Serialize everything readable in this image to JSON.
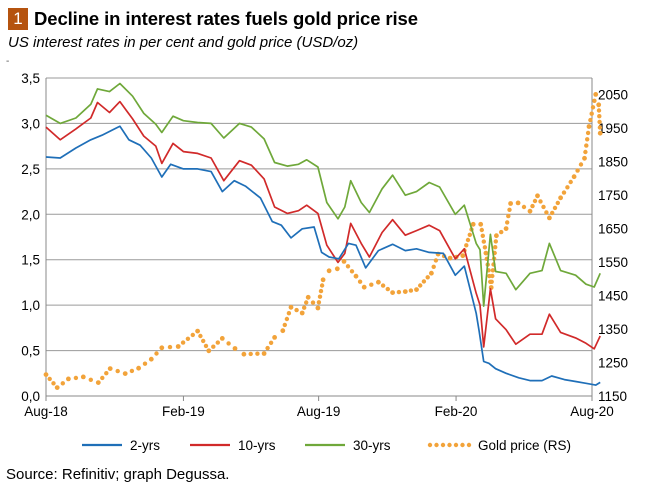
{
  "header": {
    "badge": "1",
    "title": "Decline in interest rates fuels gold price rise",
    "subtitle": "US interest rates in per cent and gold price (USD/oz)",
    "dash": "-"
  },
  "footer": {
    "source": "Source: Refinitiv; graph Degussa."
  },
  "colors": {
    "two_yr": "#1f6fb8",
    "ten_yr": "#d12a2a",
    "thirty_yr": "#6fa83a",
    "gold": "#f2a33a",
    "grid": "#9a9a9a",
    "badge": "#b5530f"
  },
  "chart_data": {
    "type": "line",
    "x_tick_labels": [
      "Aug-18",
      "Feb-19",
      "Aug-19",
      "Feb-20",
      "Aug-20"
    ],
    "x_ticks": [
      "2018-08-01",
      "2019-02-01",
      "2019-08-01",
      "2020-02-01",
      "2020-08-01"
    ],
    "y_left": {
      "range": [
        0,
        3.5
      ],
      "ticks": [
        0,
        0.5,
        1.0,
        1.5,
        2.0,
        2.5,
        3.0,
        3.5
      ],
      "tick_labels": [
        "0,0",
        "0,5",
        "1,0",
        "1,5",
        "2,0",
        "2,5",
        "3,0",
        "3,5"
      ]
    },
    "y_right": {
      "range": [
        1150,
        2100
      ],
      "ticks": [
        1150,
        1250,
        1350,
        1450,
        1550,
        1650,
        1750,
        1850,
        1950,
        2050
      ],
      "tick_labels": [
        "1150",
        "1250",
        "1350",
        "1450",
        "1550",
        "1650",
        "1750",
        "1850",
        "1950",
        "2050"
      ]
    },
    "grid": "horizontal",
    "legend_position": "bottom",
    "series": [
      {
        "name": "2-yrs",
        "axis": "left",
        "style": "solid",
        "points": [
          [
            "2018-08-01",
            2.63
          ],
          [
            "2018-08-20",
            2.62
          ],
          [
            "2018-09-10",
            2.73
          ],
          [
            "2018-09-30",
            2.82
          ],
          [
            "2018-10-15",
            2.87
          ],
          [
            "2018-11-08",
            2.97
          ],
          [
            "2018-11-20",
            2.82
          ],
          [
            "2018-12-05",
            2.76
          ],
          [
            "2018-12-20",
            2.62
          ],
          [
            "2019-01-03",
            2.41
          ],
          [
            "2019-01-15",
            2.55
          ],
          [
            "2019-02-01",
            2.5
          ],
          [
            "2019-02-20",
            2.5
          ],
          [
            "2019-03-10",
            2.47
          ],
          [
            "2019-03-25",
            2.25
          ],
          [
            "2019-04-10",
            2.37
          ],
          [
            "2019-04-25",
            2.31
          ],
          [
            "2019-05-15",
            2.18
          ],
          [
            "2019-05-31",
            1.92
          ],
          [
            "2019-06-12",
            1.88
          ],
          [
            "2019-06-25",
            1.74
          ],
          [
            "2019-07-10",
            1.84
          ],
          [
            "2019-07-26",
            1.86
          ],
          [
            "2019-08-05",
            1.58
          ],
          [
            "2019-08-15",
            1.53
          ],
          [
            "2019-08-28",
            1.51
          ],
          [
            "2019-09-10",
            1.68
          ],
          [
            "2019-09-20",
            1.66
          ],
          [
            "2019-10-03",
            1.41
          ],
          [
            "2019-10-20",
            1.6
          ],
          [
            "2019-11-08",
            1.67
          ],
          [
            "2019-11-25",
            1.6
          ],
          [
            "2019-12-10",
            1.62
          ],
          [
            "2019-12-27",
            1.58
          ],
          [
            "2020-01-15",
            1.57
          ],
          [
            "2020-01-31",
            1.33
          ],
          [
            "2020-02-12",
            1.43
          ],
          [
            "2020-02-28",
            0.91
          ],
          [
            "2020-03-03",
            0.71
          ],
          [
            "2020-03-09",
            0.38
          ],
          [
            "2020-03-16",
            0.36
          ],
          [
            "2020-03-25",
            0.3
          ],
          [
            "2020-04-08",
            0.25
          ],
          [
            "2020-04-25",
            0.2
          ],
          [
            "2020-05-10",
            0.17
          ],
          [
            "2020-05-26",
            0.17
          ],
          [
            "2020-06-08",
            0.22
          ],
          [
            "2020-06-25",
            0.18
          ],
          [
            "2020-07-10",
            0.16
          ],
          [
            "2020-07-24",
            0.14
          ],
          [
            "2020-08-06",
            0.12
          ],
          [
            "2020-08-12",
            0.15
          ]
        ]
      },
      {
        "name": "10-yrs",
        "axis": "left",
        "style": "solid",
        "points": [
          [
            "2018-08-01",
            2.96
          ],
          [
            "2018-08-20",
            2.82
          ],
          [
            "2018-09-10",
            2.94
          ],
          [
            "2018-09-30",
            3.06
          ],
          [
            "2018-10-09",
            3.23
          ],
          [
            "2018-10-25",
            3.12
          ],
          [
            "2018-11-08",
            3.24
          ],
          [
            "2018-11-25",
            3.05
          ],
          [
            "2018-12-10",
            2.86
          ],
          [
            "2018-12-26",
            2.75
          ],
          [
            "2019-01-03",
            2.56
          ],
          [
            "2019-01-18",
            2.78
          ],
          [
            "2019-02-01",
            2.69
          ],
          [
            "2019-02-20",
            2.67
          ],
          [
            "2019-03-10",
            2.62
          ],
          [
            "2019-03-27",
            2.37
          ],
          [
            "2019-04-17",
            2.59
          ],
          [
            "2019-05-03",
            2.54
          ],
          [
            "2019-05-20",
            2.39
          ],
          [
            "2019-06-03",
            2.08
          ],
          [
            "2019-06-20",
            2.01
          ],
          [
            "2019-07-05",
            2.04
          ],
          [
            "2019-07-16",
            2.1
          ],
          [
            "2019-07-31",
            2.01
          ],
          [
            "2019-08-12",
            1.66
          ],
          [
            "2019-08-27",
            1.47
          ],
          [
            "2019-09-05",
            1.57
          ],
          [
            "2019-09-13",
            1.9
          ],
          [
            "2019-09-27",
            1.68
          ],
          [
            "2019-10-08",
            1.53
          ],
          [
            "2019-10-25",
            1.8
          ],
          [
            "2019-11-08",
            1.94
          ],
          [
            "2019-11-25",
            1.77
          ],
          [
            "2019-12-10",
            1.82
          ],
          [
            "2019-12-27",
            1.88
          ],
          [
            "2020-01-10",
            1.82
          ],
          [
            "2020-01-31",
            1.51
          ],
          [
            "2020-02-12",
            1.62
          ],
          [
            "2020-02-28",
            1.13
          ],
          [
            "2020-03-04",
            1.0
          ],
          [
            "2020-03-09",
            0.54
          ],
          [
            "2020-03-18",
            1.18
          ],
          [
            "2020-03-25",
            0.85
          ],
          [
            "2020-04-08",
            0.73
          ],
          [
            "2020-04-21",
            0.57
          ],
          [
            "2020-05-10",
            0.68
          ],
          [
            "2020-05-26",
            0.68
          ],
          [
            "2020-06-05",
            0.9
          ],
          [
            "2020-06-20",
            0.7
          ],
          [
            "2020-07-10",
            0.64
          ],
          [
            "2020-07-24",
            0.58
          ],
          [
            "2020-08-04",
            0.52
          ],
          [
            "2020-08-12",
            0.66
          ]
        ]
      },
      {
        "name": "30-yrs",
        "axis": "left",
        "style": "solid",
        "points": [
          [
            "2018-08-01",
            3.09
          ],
          [
            "2018-08-20",
            3.0
          ],
          [
            "2018-09-10",
            3.06
          ],
          [
            "2018-09-30",
            3.21
          ],
          [
            "2018-10-09",
            3.38
          ],
          [
            "2018-10-25",
            3.35
          ],
          [
            "2018-11-08",
            3.44
          ],
          [
            "2018-11-25",
            3.3
          ],
          [
            "2018-12-10",
            3.11
          ],
          [
            "2018-12-26",
            2.99
          ],
          [
            "2019-01-03",
            2.9
          ],
          [
            "2019-01-18",
            3.08
          ],
          [
            "2019-02-01",
            3.03
          ],
          [
            "2019-02-20",
            3.01
          ],
          [
            "2019-03-10",
            3.0
          ],
          [
            "2019-03-27",
            2.84
          ],
          [
            "2019-04-17",
            3.0
          ],
          [
            "2019-05-03",
            2.96
          ],
          [
            "2019-05-20",
            2.83
          ],
          [
            "2019-06-03",
            2.57
          ],
          [
            "2019-06-20",
            2.53
          ],
          [
            "2019-07-05",
            2.55
          ],
          [
            "2019-07-16",
            2.6
          ],
          [
            "2019-07-31",
            2.52
          ],
          [
            "2019-08-12",
            2.13
          ],
          [
            "2019-08-27",
            1.95
          ],
          [
            "2019-09-05",
            2.08
          ],
          [
            "2019-09-13",
            2.37
          ],
          [
            "2019-09-27",
            2.13
          ],
          [
            "2019-10-08",
            2.02
          ],
          [
            "2019-10-25",
            2.28
          ],
          [
            "2019-11-08",
            2.43
          ],
          [
            "2019-11-25",
            2.21
          ],
          [
            "2019-12-10",
            2.25
          ],
          [
            "2019-12-27",
            2.35
          ],
          [
            "2020-01-10",
            2.3
          ],
          [
            "2020-01-31",
            2.0
          ],
          [
            "2020-02-12",
            2.1
          ],
          [
            "2020-02-28",
            1.68
          ],
          [
            "2020-03-04",
            1.61
          ],
          [
            "2020-03-09",
            0.99
          ],
          [
            "2020-03-18",
            1.78
          ],
          [
            "2020-03-25",
            1.37
          ],
          [
            "2020-04-08",
            1.35
          ],
          [
            "2020-04-21",
            1.17
          ],
          [
            "2020-05-10",
            1.35
          ],
          [
            "2020-05-26",
            1.38
          ],
          [
            "2020-06-05",
            1.68
          ],
          [
            "2020-06-20",
            1.38
          ],
          [
            "2020-07-10",
            1.33
          ],
          [
            "2020-07-24",
            1.23
          ],
          [
            "2020-08-04",
            1.2
          ],
          [
            "2020-08-12",
            1.35
          ]
        ]
      },
      {
        "name": "Gold price (RS)",
        "axis": "right",
        "style": "dotted",
        "points": [
          [
            "2018-08-01",
            1214
          ],
          [
            "2018-08-16",
            1175
          ],
          [
            "2018-08-31",
            1201
          ],
          [
            "2018-09-20",
            1207
          ],
          [
            "2018-10-10",
            1190
          ],
          [
            "2018-10-26",
            1232
          ],
          [
            "2018-11-15",
            1217
          ],
          [
            "2018-12-03",
            1233
          ],
          [
            "2018-12-20",
            1260
          ],
          [
            "2019-01-03",
            1294
          ],
          [
            "2019-01-25",
            1298
          ],
          [
            "2019-02-20",
            1344
          ],
          [
            "2019-03-07",
            1285
          ],
          [
            "2019-03-25",
            1322
          ],
          [
            "2019-04-11",
            1292
          ],
          [
            "2019-04-23",
            1275
          ],
          [
            "2019-05-20",
            1277
          ],
          [
            "2019-06-03",
            1325
          ],
          [
            "2019-06-14",
            1345
          ],
          [
            "2019-06-25",
            1415
          ],
          [
            "2019-07-10",
            1398
          ],
          [
            "2019-07-18",
            1445
          ],
          [
            "2019-07-31",
            1413
          ],
          [
            "2019-08-07",
            1497
          ],
          [
            "2019-08-15",
            1524
          ],
          [
            "2019-08-26",
            1530
          ],
          [
            "2019-09-04",
            1552
          ],
          [
            "2019-09-20",
            1508
          ],
          [
            "2019-10-01",
            1475
          ],
          [
            "2019-10-20",
            1490
          ],
          [
            "2019-11-08",
            1459
          ],
          [
            "2019-11-25",
            1462
          ],
          [
            "2019-12-10",
            1468
          ],
          [
            "2019-12-30",
            1517
          ],
          [
            "2020-01-08",
            1574
          ],
          [
            "2020-01-24",
            1562
          ],
          [
            "2020-02-10",
            1569
          ],
          [
            "2020-02-24",
            1663
          ],
          [
            "2020-03-05",
            1663
          ],
          [
            "2020-03-12",
            1577
          ],
          [
            "2020-03-19",
            1474
          ],
          [
            "2020-03-26",
            1629
          ],
          [
            "2020-04-08",
            1650
          ],
          [
            "2020-04-14",
            1725
          ],
          [
            "2020-04-24",
            1727
          ],
          [
            "2020-05-10",
            1702
          ],
          [
            "2020-05-20",
            1748
          ],
          [
            "2020-06-05",
            1682
          ],
          [
            "2020-06-20",
            1742
          ],
          [
            "2020-07-08",
            1805
          ],
          [
            "2020-07-22",
            1860
          ],
          [
            "2020-07-28",
            1955
          ],
          [
            "2020-08-06",
            2051
          ],
          [
            "2020-08-10",
            2020
          ],
          [
            "2020-08-12",
            1935
          ]
        ]
      }
    ]
  }
}
